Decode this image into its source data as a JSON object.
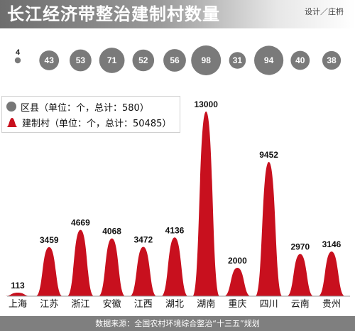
{
  "header": {
    "title": "长江经济带整治建制村数量",
    "credit": "设计／庄枬"
  },
  "legend": {
    "county": "区县（单位：个，总计：580）",
    "village": "建制村（单位：个，总计：50485）"
  },
  "footer": {
    "source": "数据来源：全国农村环境综合整治“十三五”规划"
  },
  "colors": {
    "bar": "#c8101e",
    "bubble": "#7a7a7a",
    "axis": "#999999"
  },
  "chart_data": {
    "type": "area",
    "categories": [
      "上海",
      "江苏",
      "浙江",
      "安徽",
      "江西",
      "湖北",
      "湖南",
      "重庆",
      "四川",
      "云南",
      "贵州"
    ],
    "series": [
      {
        "name": "区县（单位：个，总计：580）",
        "values": [
          4,
          43,
          53,
          71,
          52,
          56,
          98,
          31,
          94,
          40,
          38
        ]
      },
      {
        "name": "建制村（单位：个，总计：50485）",
        "values": [
          113,
          3459,
          4669,
          4068,
          3472,
          4136,
          13000,
          2000,
          9452,
          2970,
          3146
        ]
      }
    ],
    "ylim": [
      0,
      13000
    ],
    "grid": false,
    "legend_position": "top-left"
  }
}
